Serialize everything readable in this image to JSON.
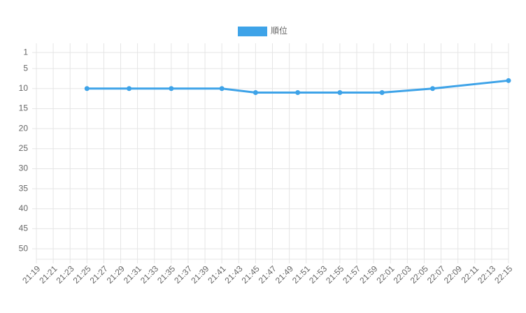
{
  "chart_data": {
    "type": "line",
    "x": [
      "21:25",
      "21:30",
      "21:35",
      "21:41",
      "21:45",
      "21:50",
      "21:55",
      "22:00",
      "22:06",
      "22:15"
    ],
    "series": [
      {
        "name": "順位",
        "color": "#3ea3e8",
        "values": [
          10,
          10,
          10,
          10,
          11,
          11,
          11,
          11,
          10,
          8
        ]
      }
    ],
    "xlim": [
      "21:19",
      "22:15"
    ],
    "xticks": [
      "21:19",
      "21:21",
      "21:23",
      "21:25",
      "21:27",
      "21:29",
      "21:31",
      "21:33",
      "21:35",
      "21:37",
      "21:39",
      "21:41",
      "21:43",
      "21:45",
      "21:47",
      "21:49",
      "21:51",
      "21:53",
      "21:55",
      "21:57",
      "21:59",
      "22:01",
      "22:03",
      "22:05",
      "22:07",
      "22:09",
      "22:11",
      "22:13",
      "22:15"
    ],
    "ylim": [
      -1.3,
      52.6
    ],
    "yticks": [
      1,
      5,
      10,
      15,
      20,
      25,
      30,
      35,
      40,
      45,
      50
    ],
    "y_reversed": true,
    "grid": true,
    "legend": "top"
  }
}
